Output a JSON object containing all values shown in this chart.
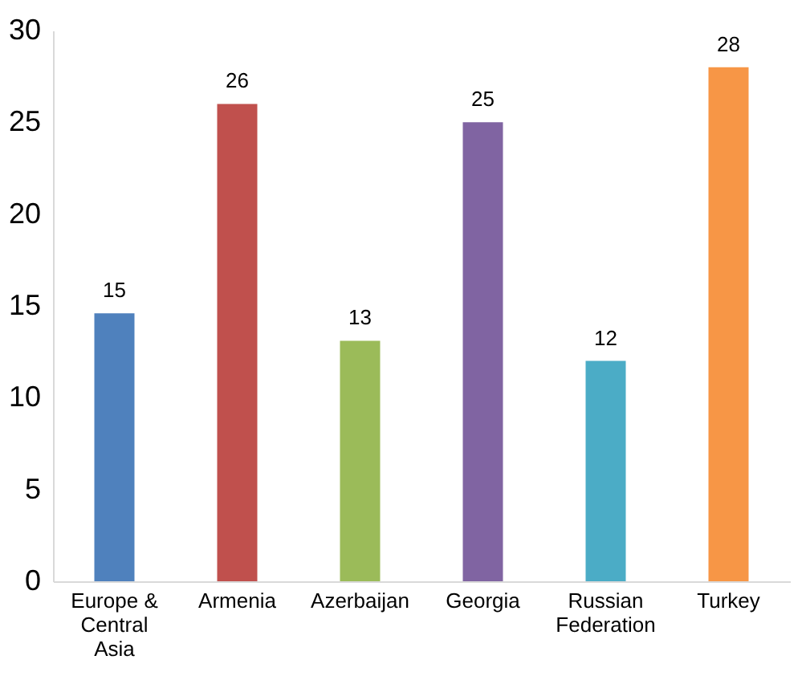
{
  "chart_data": {
    "type": "bar",
    "categories": [
      "Europe & Central Asia",
      "Armenia",
      "Azerbaijan",
      "Georgia",
      "Russian Federation",
      "Turkey"
    ],
    "values": [
      14.6,
      26,
      13.1,
      25,
      12,
      28
    ],
    "value_labels": [
      "15",
      "26",
      "13",
      "25",
      "12",
      "28"
    ],
    "colors": [
      "#4f81bd",
      "#c0504d",
      "#9bbb59",
      "#8064a2",
      "#4bacc6",
      "#f79646"
    ],
    "ylim": [
      0,
      30
    ],
    "yticks": [
      0,
      5,
      10,
      15,
      20,
      25,
      30
    ],
    "grid": false
  }
}
